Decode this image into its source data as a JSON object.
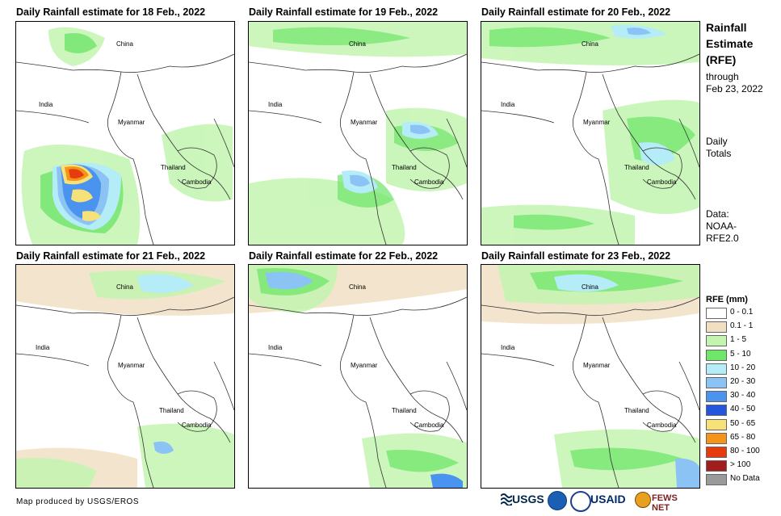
{
  "panels": [
    {
      "title": "Daily Rainfall estimate for 18 Feb., 2022"
    },
    {
      "title": "Daily Rainfall estimate for 19 Feb., 2022"
    },
    {
      "title": "Daily Rainfall estimate for 20 Feb., 2022"
    },
    {
      "title": "Daily Rainfall estimate for 21 Feb., 2022"
    },
    {
      "title": "Daily Rainfall estimate for 22 Feb., 2022"
    },
    {
      "title": "Daily Rainfall estimate for 23 Feb., 2022"
    }
  ],
  "places": {
    "china": "China",
    "india": "India",
    "myanmar": "Myanmar",
    "thailand": "Thailand",
    "cambodia": "Cambodia"
  },
  "side": {
    "title_line1": "Rainfall",
    "title_line2": "Estimate",
    "title_line3": "(RFE)",
    "through": "through",
    "date": "Feb 23, 2022",
    "daily": "Daily",
    "totals": "Totals",
    "data_label": "Data:",
    "data_source1": "NOAA-",
    "data_source2": "RFE2.0"
  },
  "legend": {
    "title": "RFE (mm)",
    "items": [
      {
        "label": "0 - 0.1",
        "color": "#ffffff"
      },
      {
        "label": "0.1 - 1",
        "color": "#f0dfc0"
      },
      {
        "label": "1 - 5",
        "color": "#c3f5b0"
      },
      {
        "label": "5 - 10",
        "color": "#6fe56a"
      },
      {
        "label": "10 - 20",
        "color": "#b4ecf7"
      },
      {
        "label": "20 - 30",
        "color": "#8cc3f5"
      },
      {
        "label": "30 - 40",
        "color": "#4a93ee"
      },
      {
        "label": "40 - 50",
        "color": "#2356db"
      },
      {
        "label": "50 - 65",
        "color": "#f7e27a"
      },
      {
        "label": "65 - 80",
        "color": "#f59418"
      },
      {
        "label": "80 - 100",
        "color": "#e63a0f"
      },
      {
        "label": "> 100",
        "color": "#a31d1d"
      },
      {
        "label": "No Data",
        "color": "#9a9a9a"
      }
    ]
  },
  "credit": "Map produced by USGS/EROS",
  "logos": {
    "usgs": "USGS",
    "usaid": "USAID",
    "fewsnet": "FEWS NET"
  }
}
